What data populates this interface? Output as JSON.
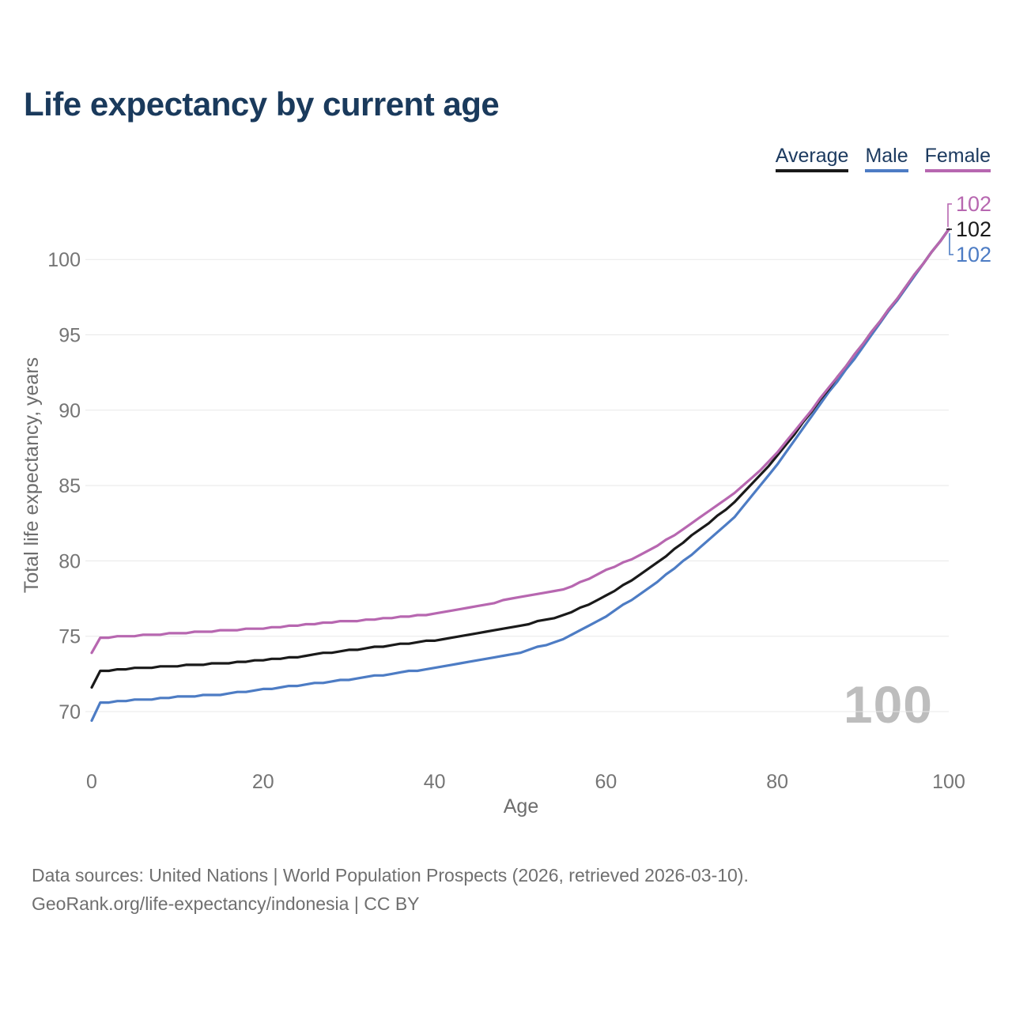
{
  "title": "Life expectancy by current age",
  "watermark": "100",
  "footer": {
    "line1": "Data sources: United Nations | World Population Prospects (2026, retrieved 2026-03-10).",
    "line2": "GeoRank.org/life-expectancy/indonesia | CC BY"
  },
  "colors": {
    "title_text": "#1a3a5c",
    "legend_text": "#1d3b60",
    "average": "#1a1a1a",
    "male": "#4d7cc4",
    "female": "#b767b0",
    "grid": "#e8e8e8",
    "axis_text": "#757575",
    "watermark": "#bdbdbd",
    "footer_text": "#6f6f6f"
  },
  "legend": [
    {
      "label": "Average",
      "color": "#1a1a1a"
    },
    {
      "label": "Male",
      "color": "#4d7cc4"
    },
    {
      "label": "Female",
      "color": "#b767b0"
    }
  ],
  "chart_data": {
    "type": "line",
    "title": "Life expectancy by current age",
    "xlabel": "Age",
    "ylabel": "Total life expectancy, years",
    "xlim": [
      0,
      100
    ],
    "ylim": [
      69,
      103.5
    ],
    "x_ticks": [
      0,
      20,
      40,
      60,
      80,
      100
    ],
    "y_ticks": [
      70,
      75,
      80,
      85,
      90,
      95,
      100
    ],
    "grid": "horizontal",
    "legend_position": "top-right",
    "x": [
      0,
      1,
      2,
      3,
      4,
      5,
      6,
      7,
      8,
      9,
      10,
      11,
      12,
      13,
      14,
      15,
      16,
      17,
      18,
      19,
      20,
      21,
      22,
      23,
      24,
      25,
      26,
      27,
      28,
      29,
      30,
      31,
      32,
      33,
      34,
      35,
      36,
      37,
      38,
      39,
      40,
      41,
      42,
      43,
      44,
      45,
      46,
      47,
      48,
      49,
      50,
      51,
      52,
      53,
      54,
      55,
      56,
      57,
      58,
      59,
      60,
      61,
      62,
      63,
      64,
      65,
      66,
      67,
      68,
      69,
      70,
      71,
      72,
      73,
      74,
      75,
      76,
      77,
      78,
      79,
      80,
      81,
      82,
      83,
      84,
      85,
      86,
      87,
      88,
      89,
      90,
      91,
      92,
      93,
      94,
      95,
      96,
      97,
      98,
      99,
      100
    ],
    "series": [
      {
        "name": "Male",
        "color": "#4d7cc4",
        "end_label": "102",
        "values": [
          69.4,
          70.6,
          70.6,
          70.7,
          70.7,
          70.8,
          70.8,
          70.8,
          70.9,
          70.9,
          71.0,
          71.0,
          71.0,
          71.1,
          71.1,
          71.1,
          71.2,
          71.3,
          71.3,
          71.4,
          71.5,
          71.5,
          71.6,
          71.7,
          71.7,
          71.8,
          71.9,
          71.9,
          72.0,
          72.1,
          72.1,
          72.2,
          72.3,
          72.4,
          72.4,
          72.5,
          72.6,
          72.7,
          72.7,
          72.8,
          72.9,
          73.0,
          73.1,
          73.2,
          73.3,
          73.4,
          73.5,
          73.6,
          73.7,
          73.8,
          73.9,
          74.1,
          74.3,
          74.4,
          74.6,
          74.8,
          75.1,
          75.4,
          75.7,
          76.0,
          76.3,
          76.7,
          77.1,
          77.4,
          77.8,
          78.2,
          78.6,
          79.1,
          79.5,
          80.0,
          80.4,
          80.9,
          81.4,
          81.9,
          82.4,
          82.9,
          83.6,
          84.3,
          85.0,
          85.7,
          86.4,
          87.2,
          88.0,
          88.8,
          89.6,
          90.4,
          91.2,
          91.9,
          92.7,
          93.4,
          94.2,
          95.0,
          95.8,
          96.6,
          97.3,
          98.1,
          98.9,
          99.7,
          100.5,
          101.2,
          102.0
        ]
      },
      {
        "name": "Average",
        "color": "#1a1a1a",
        "end_label": "102",
        "values": [
          71.6,
          72.7,
          72.7,
          72.8,
          72.8,
          72.9,
          72.9,
          72.9,
          73.0,
          73.0,
          73.0,
          73.1,
          73.1,
          73.1,
          73.2,
          73.2,
          73.2,
          73.3,
          73.3,
          73.4,
          73.4,
          73.5,
          73.5,
          73.6,
          73.6,
          73.7,
          73.8,
          73.9,
          73.9,
          74.0,
          74.1,
          74.1,
          74.2,
          74.3,
          74.3,
          74.4,
          74.5,
          74.5,
          74.6,
          74.7,
          74.7,
          74.8,
          74.9,
          75.0,
          75.1,
          75.2,
          75.3,
          75.4,
          75.5,
          75.6,
          75.7,
          75.8,
          76.0,
          76.1,
          76.2,
          76.4,
          76.6,
          76.9,
          77.1,
          77.4,
          77.7,
          78.0,
          78.4,
          78.7,
          79.1,
          79.5,
          79.9,
          80.3,
          80.8,
          81.2,
          81.7,
          82.1,
          82.5,
          83.0,
          83.4,
          83.9,
          84.5,
          85.1,
          85.7,
          86.3,
          87.0,
          87.7,
          88.4,
          89.2,
          89.9,
          90.7,
          91.4,
          92.2,
          92.9,
          93.7,
          94.4,
          95.2,
          95.9,
          96.7,
          97.4,
          98.2,
          99.0,
          99.7,
          100.5,
          101.2,
          102.0
        ]
      },
      {
        "name": "Female",
        "color": "#b767b0",
        "end_label": "102",
        "values": [
          73.9,
          74.9,
          74.9,
          75.0,
          75.0,
          75.0,
          75.1,
          75.1,
          75.1,
          75.2,
          75.2,
          75.2,
          75.3,
          75.3,
          75.3,
          75.4,
          75.4,
          75.4,
          75.5,
          75.5,
          75.5,
          75.6,
          75.6,
          75.7,
          75.7,
          75.8,
          75.8,
          75.9,
          75.9,
          76.0,
          76.0,
          76.0,
          76.1,
          76.1,
          76.2,
          76.2,
          76.3,
          76.3,
          76.4,
          76.4,
          76.5,
          76.6,
          76.7,
          76.8,
          76.9,
          77.0,
          77.1,
          77.2,
          77.4,
          77.5,
          77.6,
          77.7,
          77.8,
          77.9,
          78.0,
          78.1,
          78.3,
          78.6,
          78.8,
          79.1,
          79.4,
          79.6,
          79.9,
          80.1,
          80.4,
          80.7,
          81.0,
          81.4,
          81.7,
          82.1,
          82.5,
          82.9,
          83.3,
          83.7,
          84.1,
          84.5,
          85.0,
          85.5,
          86.0,
          86.6,
          87.2,
          87.9,
          88.6,
          89.3,
          90.0,
          90.8,
          91.5,
          92.2,
          92.9,
          93.7,
          94.4,
          95.2,
          95.9,
          96.7,
          97.4,
          98.2,
          99.0,
          99.7,
          100.5,
          101.2,
          102.0
        ]
      }
    ]
  }
}
